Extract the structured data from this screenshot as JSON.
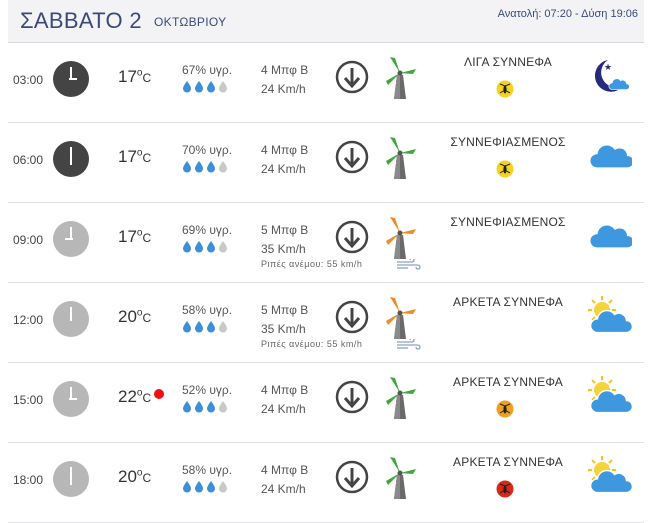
{
  "header": {
    "day": "ΣΑΒΒΑΤΟ 2",
    "month": "ΟΚΤΩΒΡΙΟΥ",
    "sunrise": "Ανατολή: 07:20",
    "sunset": "- Δύση 19:06"
  },
  "rows": [
    {
      "time": "03:00",
      "temp": "17",
      "hum": "67% υγρ.",
      "drops_filled": 3,
      "wind_bft": "4 Μπφ Β",
      "wind_kmh": "24 Km/h",
      "gust": "",
      "cond": "ΛΙΓΑ ΣΥΝΝΕΦΑ",
      "mosquito": "yellow",
      "weather_icon": "moon-cloud-icon",
      "turbine": "green",
      "hot": false
    },
    {
      "time": "06:00",
      "temp": "17",
      "hum": "70% υγρ.",
      "drops_filled": 3,
      "wind_bft": "4 Μπφ Β",
      "wind_kmh": "24 Km/h",
      "gust": "",
      "cond": "ΣΥΝΝΕΦΙΑΣΜΕΝΟΣ",
      "mosquito": "yellow",
      "weather_icon": "cloud-icon",
      "turbine": "green",
      "hot": false
    },
    {
      "time": "09:00",
      "temp": "17",
      "hum": "69% υγρ.",
      "drops_filled": 3,
      "wind_bft": "5 Μπφ Β",
      "wind_kmh": "35 Km/h",
      "gust": "Ριπές ανέμου: 55 km/h",
      "cond": "ΣΥΝΝΕΦΙΑΣΜΕΝΟΣ",
      "mosquito": "",
      "weather_icon": "cloud-icon",
      "turbine": "orange",
      "hot": false
    },
    {
      "time": "12:00",
      "temp": "20",
      "hum": "58% υγρ.",
      "drops_filled": 3,
      "wind_bft": "5 Μπφ Β",
      "wind_kmh": "35 Km/h",
      "gust": "Ριπές ανέμου: 55 km/h",
      "cond": "ΑΡΚΕΤΑ ΣΥΝΝΕΦΑ",
      "mosquito": "",
      "weather_icon": "sun-cloud-icon",
      "turbine": "orange",
      "hot": false
    },
    {
      "time": "15:00",
      "temp": "22",
      "hum": "52% υγρ.",
      "drops_filled": 3,
      "wind_bft": "4 Μπφ Β",
      "wind_kmh": "24 Km/h",
      "gust": "",
      "cond": "ΑΡΚΕΤΑ ΣΥΝΝΕΦΑ",
      "mosquito": "orange",
      "weather_icon": "sun-cloud-icon",
      "turbine": "green",
      "hot": true
    },
    {
      "time": "18:00",
      "temp": "20",
      "hum": "58% υγρ.",
      "drops_filled": 3,
      "wind_bft": "4 Μπφ Β",
      "wind_kmh": "24 Km/h",
      "gust": "",
      "cond": "ΑΡΚΕΤΑ ΣΥΝΝΕΦΑ",
      "mosquito": "red",
      "weather_icon": "sun-cloud-icon",
      "turbine": "green",
      "hot": false
    }
  ],
  "colors": {
    "title": "#3a4a78",
    "drop": "#3d8fd8",
    "drop_empty": "#c9c9c9",
    "cloud": "#3d98e0",
    "yellow": "#f2d420",
    "orange": "#f0a020",
    "red": "#d8281a",
    "turbine_green": "#3fa83a",
    "turbine_orange": "#f08a24",
    "hot_dot": "#e11111"
  }
}
